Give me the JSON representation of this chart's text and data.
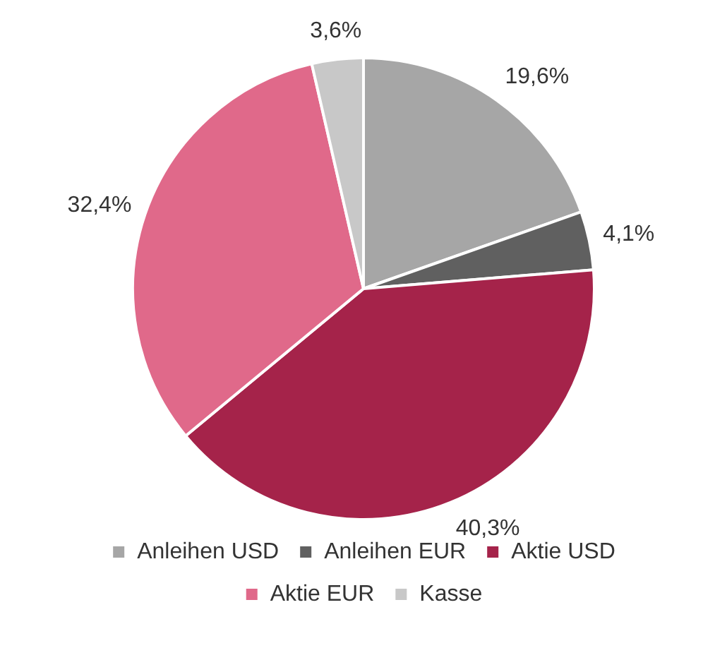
{
  "chart_data": {
    "type": "pie",
    "categories": [
      "Anleihen USD",
      "Anleihen EUR",
      "Aktie USD",
      "Aktie EUR",
      "Kasse"
    ],
    "values": [
      19.6,
      4.1,
      40.3,
      32.4,
      3.6
    ],
    "colors": [
      "#a6a6a6",
      "#606060",
      "#a5234a",
      "#e0698a",
      "#c8c8c8"
    ],
    "value_labels": [
      "19,6%",
      "4,1%",
      "40,3%",
      "32,4%",
      "3,6%"
    ],
    "legend": "bottom"
  }
}
